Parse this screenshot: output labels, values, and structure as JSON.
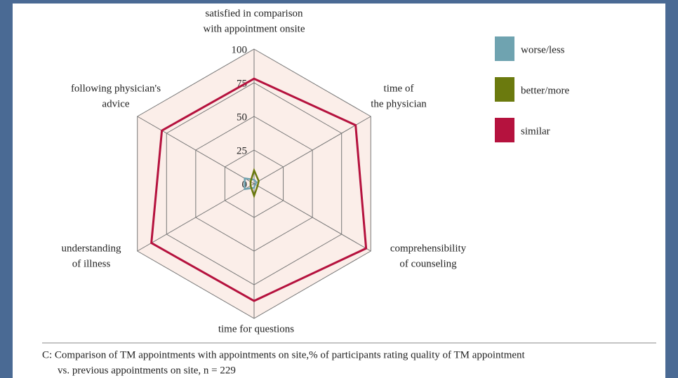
{
  "chart_data": {
    "type": "radar",
    "categories": [
      [
        "satisfied in comparison",
        "with appointment onsite"
      ],
      [
        "time of",
        "the physician"
      ],
      [
        "comprehensibility",
        "of counseling"
      ],
      [
        "time for questions"
      ],
      [
        "understanding",
        "of illness"
      ],
      [
        "following physician's",
        "advice"
      ]
    ],
    "series": [
      {
        "name": "worse/less",
        "color": "#6fa3b0",
        "values": [
          3,
          2,
          1,
          3,
          8,
          8
        ]
      },
      {
        "name": "better/more",
        "color": "#6b7a0e",
        "values": [
          10,
          4,
          3,
          9,
          3,
          3
        ]
      },
      {
        "name": "similar",
        "color": "#b5123e",
        "values": [
          78,
          87,
          96,
          87,
          88,
          79
        ]
      }
    ],
    "ylim": [
      0,
      100
    ],
    "yticks": [
      0,
      25,
      50,
      75,
      100
    ],
    "grid": true,
    "caption": [
      "C: Comparison of TM appointments with appointments on site,% of participants rating quality of TM appointment",
      "vs. previous appointments on site, n = 229"
    ]
  }
}
